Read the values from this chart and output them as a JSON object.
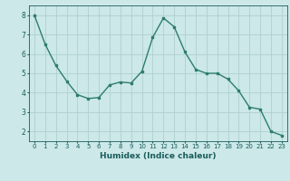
{
  "x": [
    0,
    1,
    2,
    3,
    4,
    5,
    6,
    7,
    8,
    9,
    10,
    11,
    12,
    13,
    14,
    15,
    16,
    17,
    18,
    19,
    20,
    21,
    22,
    23
  ],
  "y": [
    8.0,
    6.5,
    5.4,
    4.6,
    3.9,
    3.7,
    3.75,
    4.4,
    4.55,
    4.5,
    5.1,
    6.85,
    7.85,
    7.4,
    6.1,
    5.2,
    5.0,
    5.0,
    4.7,
    4.1,
    3.25,
    3.15,
    2.0,
    1.8
  ],
  "line_color": "#2d7d6e",
  "marker": "s",
  "marker_size": 2,
  "bg_color": "#cce8e8",
  "grid_color": "#b0d0d0",
  "xlabel": "Humidex (Indice chaleur)",
  "xlabel_color": "#1a5c5c",
  "tick_color": "#1a5c5c",
  "xlim": [
    -0.5,
    23.5
  ],
  "ylim": [
    1.5,
    8.5
  ],
  "yticks": [
    2,
    3,
    4,
    5,
    6,
    7,
    8
  ],
  "xticks": [
    0,
    1,
    2,
    3,
    4,
    5,
    6,
    7,
    8,
    9,
    10,
    11,
    12,
    13,
    14,
    15,
    16,
    17,
    18,
    19,
    20,
    21,
    22,
    23
  ],
  "linewidth": 1.0,
  "tick_fontsize": 5.0,
  "xlabel_fontsize": 6.5
}
